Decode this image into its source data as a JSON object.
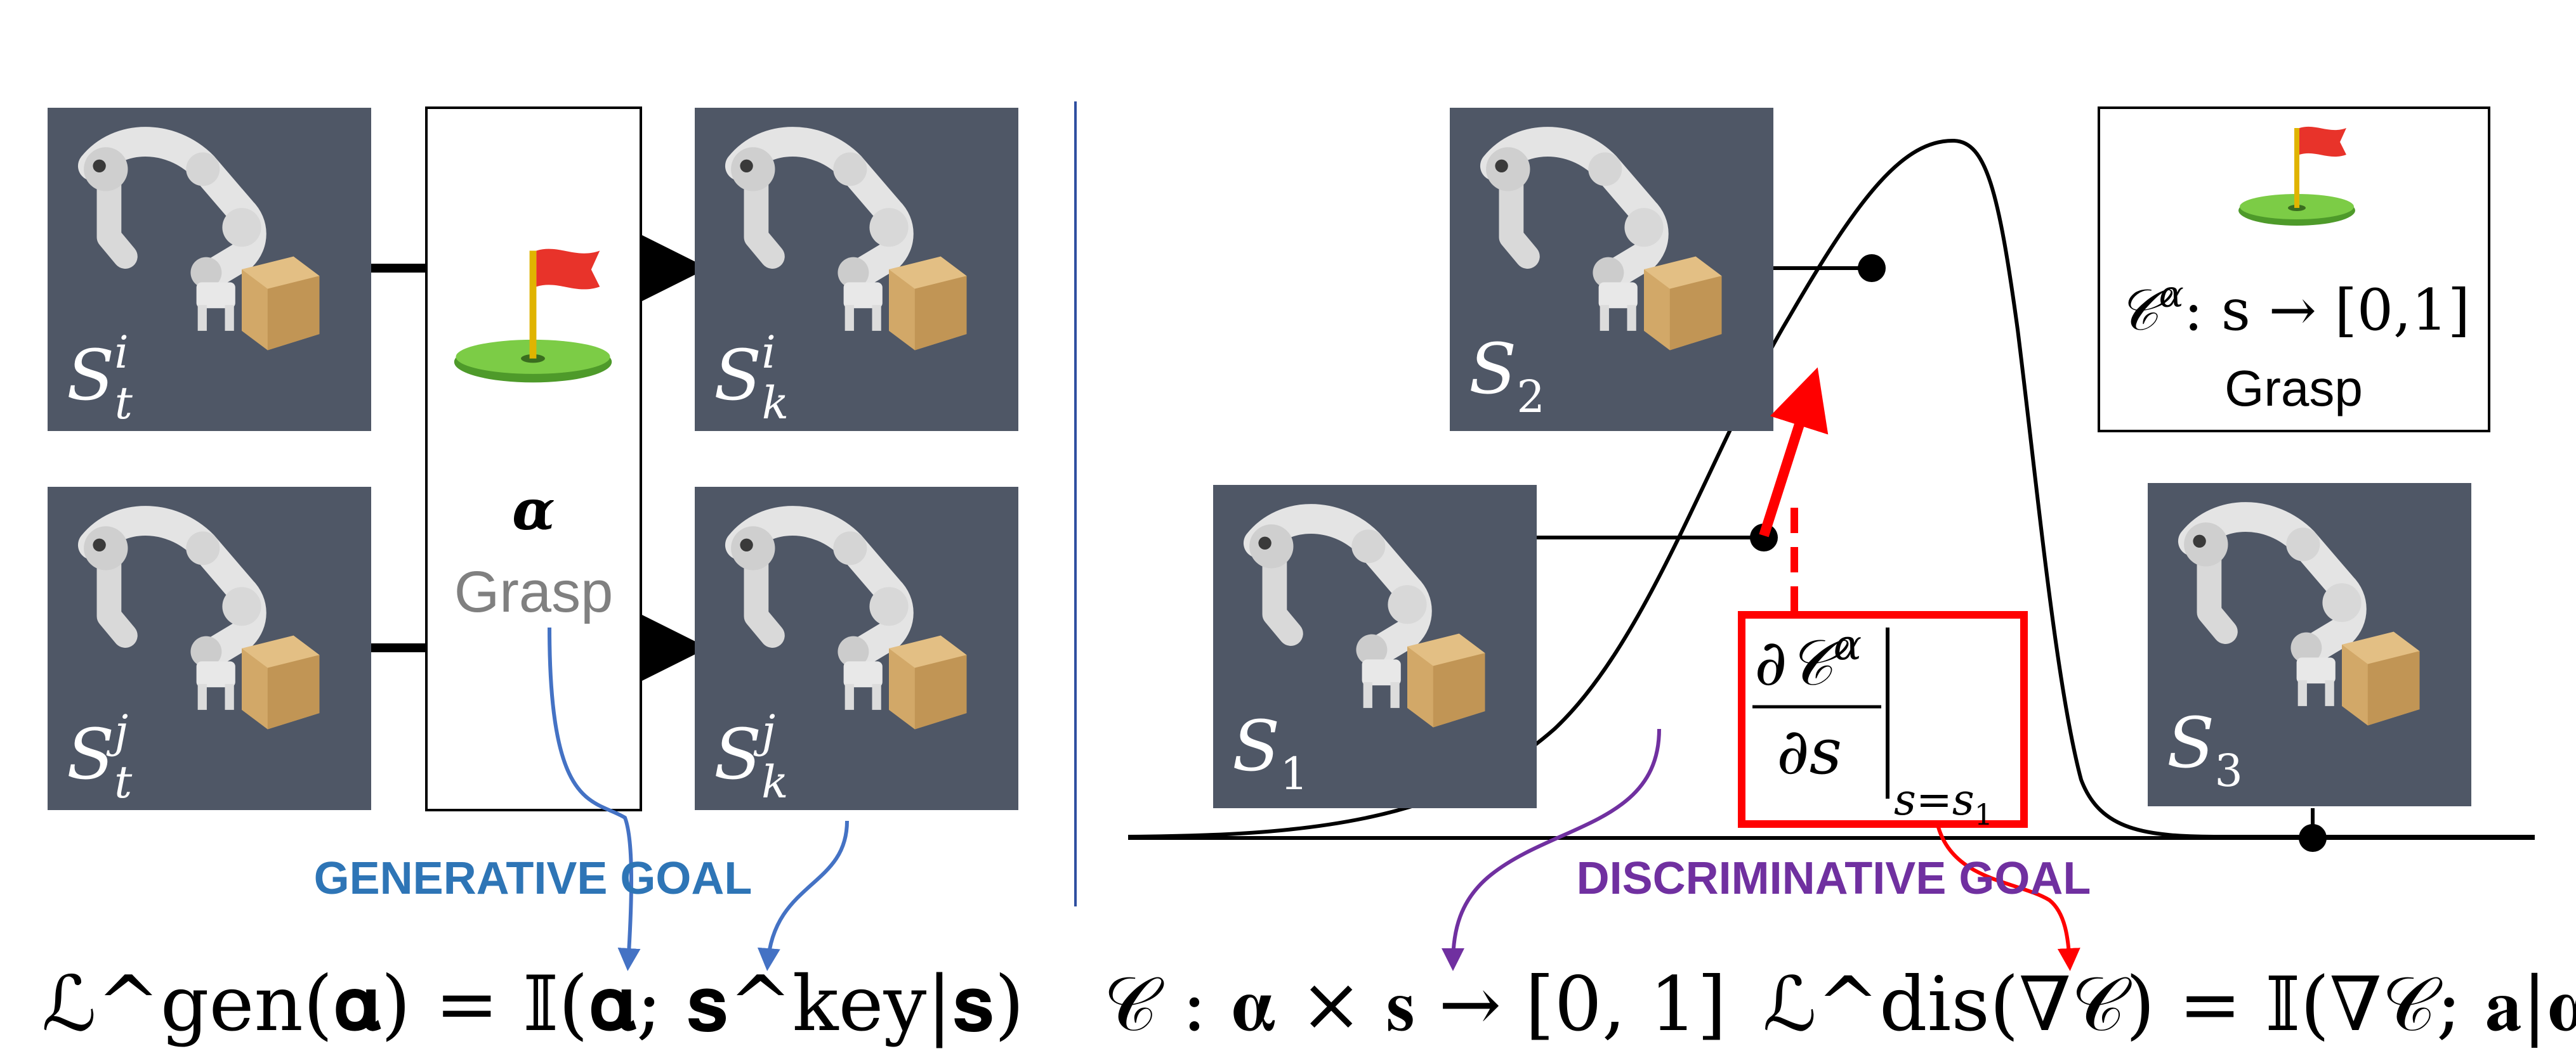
{
  "left_panel": {
    "states": [
      {
        "base": "S",
        "sup": "i",
        "sub": "t"
      },
      {
        "base": "S",
        "sup": "j",
        "sub": "t"
      },
      {
        "base": "S",
        "sup": "i",
        "sub": "k"
      },
      {
        "base": "S",
        "sup": "j",
        "sub": "k"
      }
    ],
    "goal_symbol": "α",
    "goal_word": "Grasp",
    "caption": "GENERATIVE GOAL",
    "formula": "ℒ^gen(𝛂) = 𝕀(𝛂; 𝐬^key|𝐬)"
  },
  "right_panel": {
    "states": [
      {
        "base": "S",
        "sub": "1"
      },
      {
        "base": "S",
        "sub": "2"
      },
      {
        "base": "S",
        "sub": "3"
      }
    ],
    "gradient_box": {
      "numerator": "∂𝒞",
      "numerator_sup": "α",
      "denominator": "∂s",
      "eval": "s=s",
      "eval_sub": "1"
    },
    "legend": {
      "formula_text": "𝒞",
      "formula_sup": "α",
      "formula_rest": ": s → [0,1]",
      "word": "Grasp"
    },
    "caption": "DISCRIMINATIVE GOAL",
    "formula_classifier": "𝒞 : 𝛂 × 𝐬 → [0, 1]",
    "formula_loss": "ℒ^dis(∇𝒞) = 𝕀(∇𝒞; 𝐚|𝛂)"
  },
  "colors": {
    "panel_bg": "#4f5766",
    "generative_blue": "#2e75b6",
    "arrow_blue": "#4472c4",
    "discriminative_purple": "#7030a0",
    "gradient_red": "#ff0000",
    "flag_red": "#e8332a",
    "green_disc": "#6fbf3b",
    "gray_text": "#808080"
  },
  "icons": [
    "robot-arm-image",
    "golf-flag-icon"
  ]
}
